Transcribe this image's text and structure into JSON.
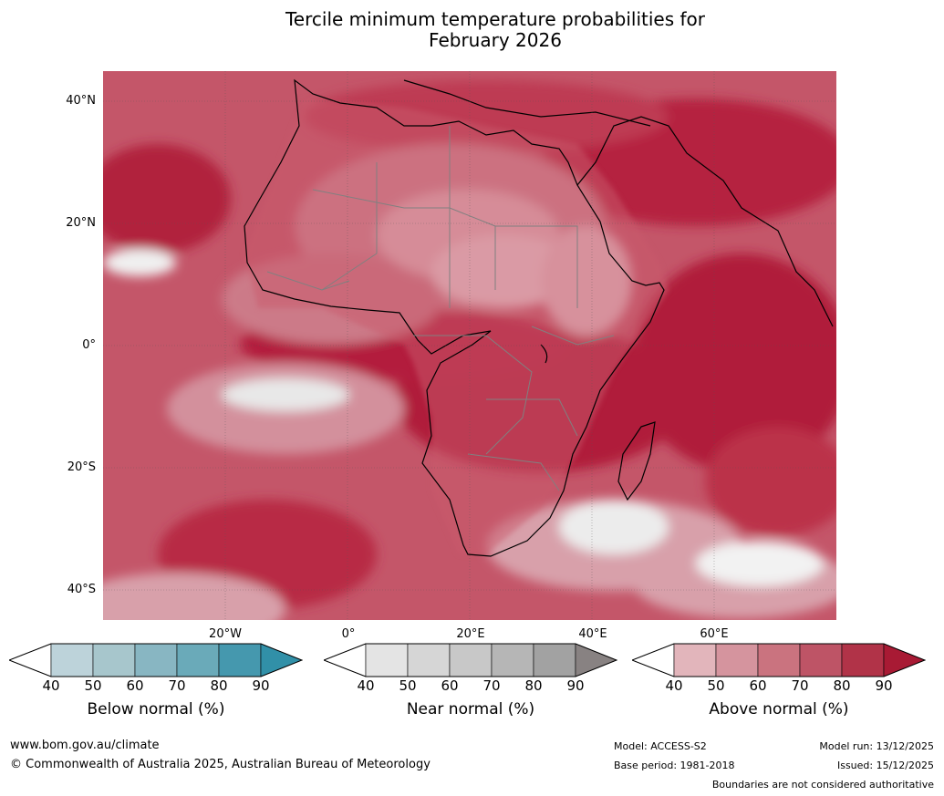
{
  "title_line1": "Tercile minimum temperature probabilities for",
  "title_line2": "February 2026",
  "map": {
    "lat_labels": [
      "40°N",
      "20°N",
      "0°",
      "20°S",
      "40°S"
    ],
    "lon_labels": [
      "20°W",
      "0°",
      "20°E",
      "40°E",
      "60°E"
    ],
    "region": "Africa"
  },
  "legends": [
    {
      "title": "Below normal (%)",
      "ticks": [
        "40",
        "50",
        "60",
        "70",
        "80",
        "90"
      ],
      "colors": [
        "#ffffff",
        "#bdd3da",
        "#a7c6cc",
        "#88b6c2",
        "#6aaab9",
        "#4598ae",
        "#3190a8"
      ]
    },
    {
      "title": "Near normal (%)",
      "ticks": [
        "40",
        "50",
        "60",
        "70",
        "80",
        "90"
      ],
      "colors": [
        "#ffffff",
        "#e4e4e4",
        "#d6d6d6",
        "#c8c8c8",
        "#b6b6b6",
        "#a2a2a2",
        "#888282"
      ]
    },
    {
      "title": "Above normal (%)",
      "ticks": [
        "40",
        "50",
        "60",
        "70",
        "80",
        "90"
      ],
      "colors": [
        "#ffffff",
        "#e2b5bb",
        "#d5949e",
        "#ca737f",
        "#be5466",
        "#b13348",
        "#a81a34"
      ]
    }
  ],
  "footer": {
    "url": "www.bom.gov.au/climate",
    "copyright": "© Commonwealth of Australia 2025, Australian Bureau of Meteorology",
    "model": "Model: ACCESS-S2",
    "base_period": "Base period: 1981-2018",
    "model_run": "Model run: 13/12/2025",
    "issued": "Issued: 15/12/2025",
    "disclaimer": "Boundaries are not considered authoritative"
  }
}
